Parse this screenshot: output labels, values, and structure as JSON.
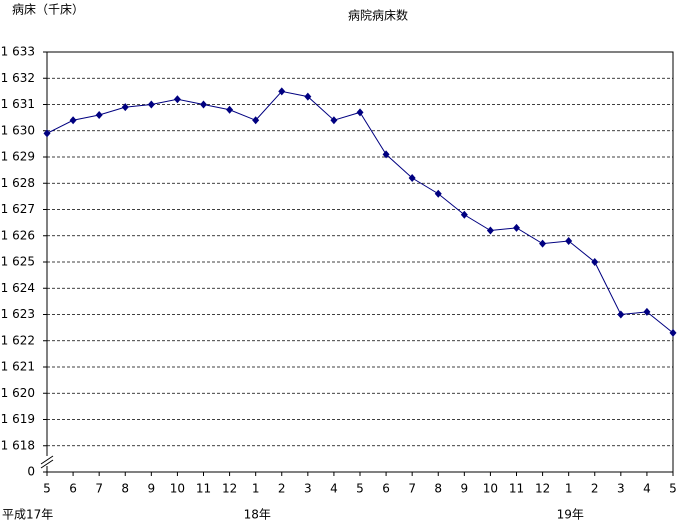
{
  "chart_data": {
    "type": "line",
    "title": "病院病床数",
    "y_label": "病床（千床）",
    "categories": [
      "5",
      "6",
      "7",
      "8",
      "9",
      "10",
      "11",
      "12",
      "1",
      "2",
      "3",
      "4",
      "5",
      "6",
      "7",
      "8",
      "9",
      "10",
      "11",
      "12",
      "1",
      "2",
      "3",
      "4",
      "5"
    ],
    "categories2": [
      "平成17年",
      null,
      null,
      null,
      null,
      null,
      null,
      null,
      "18年",
      null,
      null,
      null,
      null,
      null,
      null,
      null,
      null,
      null,
      null,
      null,
      "19年",
      null,
      null,
      null,
      null
    ],
    "series": [
      {
        "name": "病院病床数",
        "color": "#000080",
        "values": [
          1629.9,
          1630.4,
          1630.6,
          1630.9,
          1631.0,
          1631.2,
          1631.0,
          1630.8,
          1630.4,
          1631.5,
          1631.3,
          1630.4,
          1630.7,
          1629.1,
          1628.2,
          1627.6,
          1626.8,
          1626.2,
          1626.3,
          1625.7,
          1625.8,
          1625.0,
          1623.0,
          1623.1,
          1622.3
        ]
      }
    ],
    "ylim": [
      1617,
      1633
    ],
    "yticks": [
      0,
      {
        "value": 1618,
        "label": "1 618"
      },
      {
        "value": 1619,
        "label": "1 619"
      },
      {
        "value": 1620,
        "label": "1 620"
      },
      {
        "value": 1621,
        "label": "1 621"
      },
      {
        "value": 1622,
        "label": "1 622"
      },
      {
        "value": 1623,
        "label": "1 623"
      },
      {
        "value": 1624,
        "label": "1 624"
      },
      {
        "value": 1625,
        "label": "1 625"
      },
      {
        "value": 1626,
        "label": "1 626"
      },
      {
        "value": 1627,
        "label": "1 627"
      },
      {
        "value": 1628,
        "label": "1 628"
      },
      {
        "value": 1629,
        "label": "1 629"
      },
      {
        "value": 1630,
        "label": "1 630"
      },
      {
        "value": 1631,
        "label": "1 631"
      },
      {
        "value": 1632,
        "label": "1 632"
      },
      {
        "value": 1633,
        "label": "1 633"
      }
    ],
    "axis_break": true,
    "grid": true
  }
}
